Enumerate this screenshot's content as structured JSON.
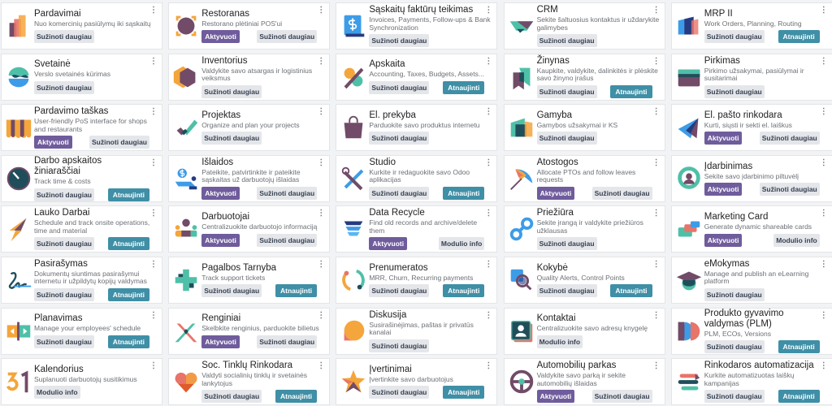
{
  "buttons": {
    "info": "Sužinoti daugiau",
    "module": "Modulio info",
    "activate": "Aktyvuoti",
    "upgrade": "Atnaujinti"
  },
  "colors": {
    "activate": "#6f5c9c",
    "upgrade": "#3f8fa6",
    "secondary": "#e4e6ea",
    "background": "#f2f3f5"
  },
  "apps": [
    {
      "name": "Pardavimai",
      "desc": "Nuo komercinių pasiūlymų iki sąskaitų",
      "icon": "sales-icon",
      "buttons": [
        "info"
      ]
    },
    {
      "name": "Restoranas",
      "desc": "Restorano plėtiniai POS'ui",
      "icon": "restaurant-icon",
      "buttons": [
        "activate",
        "info"
      ]
    },
    {
      "name": "Sąskaitų faktūrų teikimas",
      "desc": "Invoices, Payments, Follow-ups & Bank Synchronization",
      "icon": "invoicing-icon",
      "buttons": [
        "info"
      ]
    },
    {
      "name": "CRM",
      "desc": "Sekite šaltuosius kontaktus ir uždarykite galimybes",
      "icon": "crm-icon",
      "buttons": [
        "info"
      ]
    },
    {
      "name": "MRP II",
      "desc": "Work Orders, Planning, Routing",
      "icon": "mrp-icon",
      "buttons": [
        "info",
        "upgrade"
      ]
    },
    {
      "name": "Svetainė",
      "desc": "Verslo svetainės kūrimas",
      "icon": "website-icon",
      "buttons": [
        "info"
      ]
    },
    {
      "name": "Inventorius",
      "desc": "Valdykite savo atsargas ir logistinius veiksmus",
      "icon": "inventory-icon",
      "buttons": [
        "info"
      ]
    },
    {
      "name": "Apskaita",
      "desc": "Accounting, Taxes, Budgets, Assets...",
      "icon": "accounting-icon",
      "buttons": [
        "info",
        "upgrade"
      ]
    },
    {
      "name": "Žinynas",
      "desc": "Kaupkite, valdykite, dalinkitės ir plėskite savo žinyno įrašus",
      "icon": "knowledge-icon",
      "buttons": [
        "info",
        "upgrade"
      ]
    },
    {
      "name": "Pirkimas",
      "desc": "Pirkimo užsakymai, pasiūlymai ir susitarimai",
      "icon": "purchase-icon",
      "buttons": [
        "info"
      ]
    },
    {
      "name": "Pardavimo taškas",
      "desc": "User-friendly PoS interface for shops and restaurants",
      "icon": "pos-icon",
      "buttons": [
        "activate",
        "info"
      ]
    },
    {
      "name": "Projektas",
      "desc": "Organize and plan your projects",
      "icon": "project-icon",
      "buttons": [
        "info"
      ]
    },
    {
      "name": "El. prekyba",
      "desc": "Parduokite savo produktus internetu",
      "icon": "ecommerce-icon",
      "buttons": [
        "info"
      ]
    },
    {
      "name": "Gamyba",
      "desc": "Gamybos užsakymai ir KS",
      "icon": "manufacturing-icon",
      "buttons": [
        "info"
      ]
    },
    {
      "name": "El. pašto rinkodara",
      "desc": "Kurti, siųsti ir sekti el. laiškus",
      "icon": "email-marketing-icon",
      "buttons": [
        "activate",
        "info"
      ]
    },
    {
      "name": "Darbo apskaitos žiniaraščiai",
      "desc": "Track time & costs",
      "icon": "timesheet-icon",
      "buttons": [
        "info",
        "upgrade"
      ]
    },
    {
      "name": "Išlaidos",
      "desc": "Pateikite, patvirtinkite ir pateikite sąskaitas už darbuotojų išlaidas",
      "icon": "expenses-icon",
      "buttons": [
        "activate",
        "info"
      ]
    },
    {
      "name": "Studio",
      "desc": "Kurkite ir redaguokite savo Odoo aplikacijas",
      "icon": "studio-icon",
      "buttons": [
        "info",
        "upgrade"
      ]
    },
    {
      "name": "Atostogos",
      "desc": "Allocate PTOs and follow leaves requests",
      "icon": "time-off-icon",
      "buttons": [
        "activate",
        "info"
      ]
    },
    {
      "name": "Įdarbinimas",
      "desc": "Sekite savo įdarbinimo piltuvėlį",
      "icon": "recruitment-icon",
      "buttons": [
        "activate",
        "info"
      ]
    },
    {
      "name": "Lauko Darbai",
      "desc": "Schedule and track onsite operations, time and material",
      "icon": "field-service-icon",
      "buttons": [
        "info",
        "upgrade"
      ]
    },
    {
      "name": "Darbuotojai",
      "desc": "Centralizuokite darbuotojo informaciją",
      "icon": "employees-icon",
      "buttons": [
        "activate",
        "info"
      ]
    },
    {
      "name": "Data Recycle",
      "desc": "Find old records and archive/delete them",
      "icon": "data-recycle-icon",
      "buttons": [
        "activate",
        "module"
      ]
    },
    {
      "name": "Priežiūra",
      "desc": "Sekite įrangą ir valdykite priežiūros užklausas",
      "icon": "maintenance-icon",
      "buttons": [
        "info"
      ]
    },
    {
      "name": "Marketing Card",
      "desc": "Generate dynamic shareable cards",
      "icon": "marketing-card-icon",
      "buttons": [
        "activate",
        "module"
      ]
    },
    {
      "name": "Pasirašymas",
      "desc": "Dokumentų siuntimas pasirašymui internetu ir užpildytų kopijų valdymas",
      "icon": "sign-icon",
      "buttons": [
        "info",
        "upgrade"
      ]
    },
    {
      "name": "Pagalbos Tarnyba",
      "desc": "Track support tickets",
      "icon": "helpdesk-icon",
      "buttons": [
        "info",
        "upgrade"
      ]
    },
    {
      "name": "Prenumeratos",
      "desc": "MRR, Churn, Recurring payments",
      "icon": "subscriptions-icon",
      "buttons": [
        "info",
        "upgrade"
      ]
    },
    {
      "name": "Kokybė",
      "desc": "Quality Alerts, Control Points",
      "icon": "quality-icon",
      "buttons": [
        "info",
        "upgrade"
      ]
    },
    {
      "name": "eMokymas",
      "desc": "Manage and publish an eLearning platform",
      "icon": "elearning-icon",
      "buttons": [
        "info"
      ]
    },
    {
      "name": "Planavimas",
      "desc": "Manage your employees' schedule",
      "icon": "planning-icon",
      "buttons": [
        "info",
        "upgrade"
      ]
    },
    {
      "name": "Renginiai",
      "desc": "Skelbkite renginius, parduokite bilietus",
      "icon": "events-icon",
      "buttons": [
        "activate",
        "info"
      ]
    },
    {
      "name": "Diskusija",
      "desc": "Susirašinėjimas, paštas ir privatūs kanalai",
      "icon": "discuss-icon",
      "buttons": [
        "info"
      ]
    },
    {
      "name": "Kontaktai",
      "desc": "Centralizuokite savo adresų knygelę",
      "icon": "contacts-icon",
      "buttons": [
        "module"
      ]
    },
    {
      "name": "Produkto gyvavimo valdymas (PLM)",
      "desc": "PLM, ECOs, Versions",
      "icon": "plm-icon",
      "buttons": [
        "info",
        "upgrade"
      ]
    },
    {
      "name": "Kalendorius",
      "desc": "Suplanuoti darbuotojų susitikimus",
      "icon": "calendar-icon",
      "buttons": [
        "module"
      ]
    },
    {
      "name": "Soc. Tinklų Rinkodara",
      "desc": "Valdyti socialinių tinklų ir svetainės lankytojus",
      "icon": "social-marketing-icon",
      "buttons": [
        "info",
        "upgrade"
      ]
    },
    {
      "name": "Įvertinimai",
      "desc": "Įvertinkite savo darbuotojus",
      "icon": "appraisals-icon",
      "buttons": [
        "info",
        "upgrade"
      ]
    },
    {
      "name": "Automobilių parkas",
      "desc": "Valdykite savo parką ir sekite automobilių išlaidas",
      "icon": "fleet-icon",
      "buttons": [
        "activate",
        "info"
      ]
    },
    {
      "name": "Rinkodaros automatizacija",
      "desc": "Kurkite automatizuotas laiškų kampanijas",
      "icon": "marketing-automation-icon",
      "buttons": [
        "info",
        "upgrade"
      ]
    }
  ]
}
